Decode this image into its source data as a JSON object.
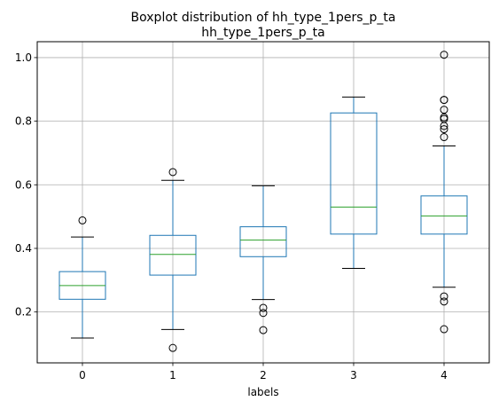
{
  "chart_data": {
    "type": "boxplot",
    "suptitle": "Boxplot distribution of hh_type_1pers_p_ta",
    "title": "hh_type_1pers_p_ta",
    "xlabel": "labels",
    "ylabel": "",
    "categories": [
      "0",
      "1",
      "2",
      "3",
      "4"
    ],
    "ylim": [
      0.04,
      1.05
    ],
    "yticks": [
      0.2,
      0.4,
      0.6,
      0.8,
      1.0
    ],
    "ytick_labels": [
      "0.2",
      "0.4",
      "0.6",
      "0.8",
      "1.0"
    ],
    "grid": true,
    "colors": {
      "box": "#1f77b4",
      "median": "#2ca02c",
      "whisker": "#1f77b4",
      "cap": "#000000",
      "flier": "#000000",
      "grid": "#b0b0b0"
    },
    "boxes": [
      {
        "label": "0",
        "whislo": 0.118,
        "q1": 0.24,
        "med": 0.283,
        "q3": 0.327,
        "whishi": 0.436,
        "fliers": [
          0.488
        ]
      },
      {
        "label": "1",
        "whislo": 0.145,
        "q1": 0.316,
        "med": 0.381,
        "q3": 0.441,
        "whishi": 0.614,
        "fliers": [
          0.64,
          0.087
        ]
      },
      {
        "label": "2",
        "whislo": 0.239,
        "q1": 0.374,
        "med": 0.426,
        "q3": 0.468,
        "whishi": 0.597,
        "fliers": [
          0.213,
          0.197,
          0.143
        ]
      },
      {
        "label": "3",
        "whislo": 0.337,
        "q1": 0.445,
        "med": 0.53,
        "q3": 0.826,
        "whishi": 0.876,
        "fliers": []
      },
      {
        "label": "4",
        "whislo": 0.278,
        "q1": 0.445,
        "med": 0.502,
        "q3": 0.565,
        "whishi": 0.722,
        "fliers": [
          1.009,
          0.867,
          0.867,
          0.836,
          0.812,
          0.807,
          0.785,
          0.775,
          0.75,
          0.249,
          0.233,
          0.146
        ]
      }
    ]
  }
}
